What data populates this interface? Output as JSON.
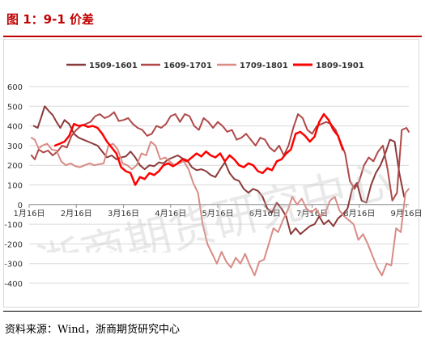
{
  "header": {
    "title": "图 1：9-1 价差"
  },
  "source": {
    "text": "资料来源：Wind，浙商期货研究中心"
  },
  "watermark": {
    "text": "浙商期货研究中心"
  },
  "chart_data": {
    "type": "line",
    "title": "",
    "xlabel": "",
    "ylabel": "",
    "ylim": [
      -400,
      600
    ],
    "yticks": [
      600,
      500,
      400,
      300,
      200,
      100,
      0,
      -100,
      -200,
      -300,
      -400
    ],
    "xticks": [
      "1月16日",
      "2月16日",
      "3月16日",
      "4月16日",
      "5月16日",
      "6月16日",
      "7月16日",
      "8月16日",
      "9月16日"
    ],
    "x_range_months": [
      1,
      9.05
    ],
    "grid": true,
    "legend": "top",
    "series": [
      {
        "name": "1509-1601",
        "color": "#8b3a3a",
        "width": 2,
        "points": [
          [
            1.1,
            400
          ],
          [
            1.18,
            390
          ],
          [
            1.25,
            440
          ],
          [
            1.33,
            500
          ],
          [
            1.42,
            475
          ],
          [
            1.5,
            455
          ],
          [
            1.58,
            420
          ],
          [
            1.66,
            390
          ],
          [
            1.75,
            430
          ],
          [
            1.85,
            410
          ],
          [
            1.95,
            360
          ],
          [
            2.05,
            340
          ],
          [
            2.15,
            330
          ],
          [
            2.25,
            320
          ],
          [
            2.35,
            310
          ],
          [
            2.45,
            300
          ],
          [
            2.55,
            270
          ],
          [
            2.65,
            240
          ],
          [
            2.75,
            250
          ],
          [
            2.85,
            230
          ],
          [
            2.95,
            240
          ],
          [
            3.05,
            245
          ],
          [
            3.15,
            270
          ],
          [
            3.25,
            240
          ],
          [
            3.35,
            200
          ],
          [
            3.45,
            180
          ],
          [
            3.55,
            200
          ],
          [
            3.65,
            195
          ],
          [
            3.75,
            215
          ],
          [
            3.85,
            210
          ],
          [
            3.95,
            230
          ],
          [
            4.05,
            240
          ],
          [
            4.15,
            250
          ],
          [
            4.25,
            235
          ],
          [
            4.35,
            225
          ],
          [
            4.45,
            190
          ],
          [
            4.55,
            175
          ],
          [
            4.65,
            180
          ],
          [
            4.75,
            170
          ],
          [
            4.85,
            150
          ],
          [
            4.95,
            140
          ],
          [
            5.05,
            180
          ],
          [
            5.15,
            215
          ],
          [
            5.25,
            160
          ],
          [
            5.35,
            130
          ],
          [
            5.45,
            120
          ],
          [
            5.55,
            80
          ],
          [
            5.65,
            60
          ],
          [
            5.75,
            80
          ],
          [
            5.85,
            70
          ],
          [
            5.95,
            40
          ],
          [
            6.05,
            -20
          ],
          [
            6.15,
            -40
          ],
          [
            6.25,
            10
          ],
          [
            6.35,
            -20
          ],
          [
            6.45,
            -60
          ],
          [
            6.55,
            -150
          ],
          [
            6.65,
            -120
          ],
          [
            6.75,
            -150
          ],
          [
            6.85,
            -130
          ],
          [
            6.95,
            -110
          ],
          [
            7.05,
            -100
          ],
          [
            7.15,
            -60
          ],
          [
            7.25,
            -100
          ],
          [
            7.35,
            -80
          ],
          [
            7.45,
            -110
          ],
          [
            7.55,
            -70
          ],
          [
            7.65,
            -50
          ],
          [
            7.75,
            -20
          ],
          [
            7.85,
            80
          ],
          [
            7.95,
            110
          ],
          [
            8.05,
            20
          ],
          [
            8.15,
            10
          ],
          [
            8.25,
            100
          ],
          [
            8.35,
            160
          ],
          [
            8.45,
            200
          ],
          [
            8.55,
            260
          ],
          [
            8.65,
            330
          ],
          [
            8.75,
            320
          ],
          [
            8.85,
            160
          ],
          [
            8.95,
            40
          ]
        ]
      },
      {
        "name": "1609-1701",
        "color": "#b04848",
        "width": 2,
        "points": [
          [
            1.05,
            250
          ],
          [
            1.12,
            230
          ],
          [
            1.2,
            280
          ],
          [
            1.3,
            265
          ],
          [
            1.4,
            275
          ],
          [
            1.5,
            250
          ],
          [
            1.6,
            270
          ],
          [
            1.7,
            300
          ],
          [
            1.8,
            290
          ],
          [
            1.9,
            350
          ],
          [
            2.0,
            380
          ],
          [
            2.1,
            400
          ],
          [
            2.2,
            410
          ],
          [
            2.3,
            420
          ],
          [
            2.4,
            450
          ],
          [
            2.5,
            460
          ],
          [
            2.6,
            440
          ],
          [
            2.7,
            450
          ],
          [
            2.8,
            470
          ],
          [
            2.9,
            425
          ],
          [
            3.0,
            430
          ],
          [
            3.1,
            440
          ],
          [
            3.2,
            410
          ],
          [
            3.3,
            390
          ],
          [
            3.4,
            380
          ],
          [
            3.5,
            350
          ],
          [
            3.6,
            360
          ],
          [
            3.7,
            400
          ],
          [
            3.8,
            390
          ],
          [
            3.9,
            410
          ],
          [
            4.0,
            450
          ],
          [
            4.1,
            460
          ],
          [
            4.2,
            420
          ],
          [
            4.3,
            460
          ],
          [
            4.4,
            450
          ],
          [
            4.5,
            400
          ],
          [
            4.6,
            380
          ],
          [
            4.7,
            440
          ],
          [
            4.8,
            420
          ],
          [
            4.9,
            390
          ],
          [
            5.0,
            420
          ],
          [
            5.1,
            400
          ],
          [
            5.2,
            370
          ],
          [
            5.3,
            380
          ],
          [
            5.4,
            330
          ],
          [
            5.5,
            340
          ],
          [
            5.6,
            360
          ],
          [
            5.7,
            330
          ],
          [
            5.8,
            300
          ],
          [
            5.9,
            340
          ],
          [
            6.0,
            330
          ],
          [
            6.1,
            290
          ],
          [
            6.2,
            270
          ],
          [
            6.3,
            300
          ],
          [
            6.4,
            250
          ],
          [
            6.5,
            300
          ],
          [
            6.6,
            390
          ],
          [
            6.7,
            460
          ],
          [
            6.8,
            440
          ],
          [
            6.9,
            380
          ],
          [
            7.0,
            360
          ],
          [
            7.1,
            400
          ],
          [
            7.2,
            410
          ],
          [
            7.3,
            420
          ],
          [
            7.4,
            410
          ],
          [
            7.5,
            380
          ],
          [
            7.6,
            320
          ],
          [
            7.7,
            260
          ],
          [
            7.8,
            120
          ],
          [
            7.9,
            80
          ],
          [
            8.0,
            120
          ],
          [
            8.1,
            200
          ],
          [
            8.2,
            240
          ],
          [
            8.3,
            220
          ],
          [
            8.4,
            270
          ],
          [
            8.5,
            300
          ],
          [
            8.6,
            180
          ],
          [
            8.7,
            20
          ],
          [
            8.8,
            60
          ],
          [
            8.9,
            380
          ],
          [
            9.0,
            390
          ],
          [
            9.05,
            370
          ]
        ]
      },
      {
        "name": "1709-1801",
        "color": "#d98c86",
        "width": 2,
        "points": [
          [
            1.05,
            340
          ],
          [
            1.12,
            330
          ],
          [
            1.2,
            285
          ],
          [
            1.28,
            300
          ],
          [
            1.38,
            310
          ],
          [
            1.48,
            280
          ],
          [
            1.58,
            275
          ],
          [
            1.68,
            220
          ],
          [
            1.78,
            200
          ],
          [
            1.88,
            210
          ],
          [
            1.98,
            195
          ],
          [
            2.08,
            190
          ],
          [
            2.18,
            200
          ],
          [
            2.28,
            210
          ],
          [
            2.38,
            200
          ],
          [
            2.48,
            205
          ],
          [
            2.58,
            210
          ],
          [
            2.68,
            300
          ],
          [
            2.78,
            310
          ],
          [
            2.88,
            280
          ],
          [
            2.98,
            210
          ],
          [
            3.08,
            200
          ],
          [
            3.18,
            180
          ],
          [
            3.28,
            200
          ],
          [
            3.38,
            260
          ],
          [
            3.48,
            250
          ],
          [
            3.58,
            320
          ],
          [
            3.68,
            300
          ],
          [
            3.78,
            230
          ],
          [
            3.88,
            240
          ],
          [
            3.98,
            220
          ],
          [
            4.08,
            200
          ],
          [
            4.18,
            210
          ],
          [
            4.28,
            220
          ],
          [
            4.38,
            180
          ],
          [
            4.48,
            110
          ],
          [
            4.58,
            60
          ],
          [
            4.68,
            -100
          ],
          [
            4.78,
            -200
          ],
          [
            4.88,
            -250
          ],
          [
            4.98,
            -300
          ],
          [
            5.08,
            -240
          ],
          [
            5.18,
            -290
          ],
          [
            5.28,
            -320
          ],
          [
            5.38,
            -270
          ],
          [
            5.48,
            -300
          ],
          [
            5.58,
            -250
          ],
          [
            5.68,
            -310
          ],
          [
            5.78,
            -360
          ],
          [
            5.88,
            -290
          ],
          [
            5.98,
            -280
          ],
          [
            6.08,
            -200
          ],
          [
            6.18,
            -120
          ],
          [
            6.28,
            -140
          ],
          [
            6.38,
            -80
          ],
          [
            6.48,
            -30
          ],
          [
            6.58,
            40
          ],
          [
            6.68,
            0
          ],
          [
            6.78,
            30
          ],
          [
            6.88,
            -20
          ],
          [
            6.98,
            -40
          ],
          [
            7.08,
            -20
          ],
          [
            7.18,
            -60
          ],
          [
            7.28,
            -40
          ],
          [
            7.38,
            20
          ],
          [
            7.48,
            40
          ],
          [
            7.58,
            -30
          ],
          [
            7.68,
            -60
          ],
          [
            7.78,
            -80
          ],
          [
            7.88,
            -100
          ],
          [
            7.98,
            -180
          ],
          [
            8.08,
            -150
          ],
          [
            8.18,
            -200
          ],
          [
            8.28,
            -260
          ],
          [
            8.38,
            -320
          ],
          [
            8.48,
            -360
          ],
          [
            8.58,
            -300
          ],
          [
            8.68,
            -310
          ],
          [
            8.78,
            -120
          ],
          [
            8.88,
            -140
          ],
          [
            8.98,
            60
          ],
          [
            9.05,
            80
          ]
        ]
      },
      {
        "name": "1809-1901",
        "color": "#ff0000",
        "width": 2.5,
        "points": [
          [
            1.55,
            300
          ],
          [
            1.65,
            310
          ],
          [
            1.75,
            320
          ],
          [
            1.85,
            350
          ],
          [
            1.95,
            410
          ],
          [
            2.05,
            400
          ],
          [
            2.15,
            405
          ],
          [
            2.25,
            395
          ],
          [
            2.35,
            400
          ],
          [
            2.45,
            390
          ],
          [
            2.55,
            360
          ],
          [
            2.65,
            320
          ],
          [
            2.75,
            290
          ],
          [
            2.85,
            260
          ],
          [
            2.95,
            190
          ],
          [
            3.05,
            170
          ],
          [
            3.15,
            160
          ],
          [
            3.25,
            100
          ],
          [
            3.35,
            140
          ],
          [
            3.45,
            130
          ],
          [
            3.55,
            160
          ],
          [
            3.65,
            150
          ],
          [
            3.75,
            170
          ],
          [
            3.85,
            200
          ],
          [
            3.95,
            210
          ],
          [
            4.05,
            195
          ],
          [
            4.15,
            210
          ],
          [
            4.25,
            230
          ],
          [
            4.35,
            220
          ],
          [
            4.45,
            240
          ],
          [
            4.55,
            260
          ],
          [
            4.65,
            245
          ],
          [
            4.75,
            270
          ],
          [
            4.85,
            250
          ],
          [
            4.95,
            240
          ],
          [
            5.05,
            260
          ],
          [
            5.15,
            220
          ],
          [
            5.25,
            250
          ],
          [
            5.35,
            230
          ],
          [
            5.45,
            200
          ],
          [
            5.55,
            190
          ],
          [
            5.65,
            210
          ],
          [
            5.75,
            200
          ],
          [
            5.85,
            170
          ],
          [
            5.95,
            160
          ],
          [
            6.05,
            185
          ],
          [
            6.15,
            175
          ],
          [
            6.25,
            220
          ],
          [
            6.35,
            230
          ],
          [
            6.45,
            260
          ],
          [
            6.55,
            280
          ],
          [
            6.65,
            360
          ],
          [
            6.75,
            370
          ],
          [
            6.85,
            350
          ],
          [
            6.95,
            320
          ],
          [
            7.05,
            345
          ],
          [
            7.15,
            420
          ],
          [
            7.25,
            460
          ],
          [
            7.35,
            430
          ],
          [
            7.45,
            380
          ],
          [
            7.55,
            350
          ],
          [
            7.65,
            280
          ]
        ]
      }
    ]
  }
}
